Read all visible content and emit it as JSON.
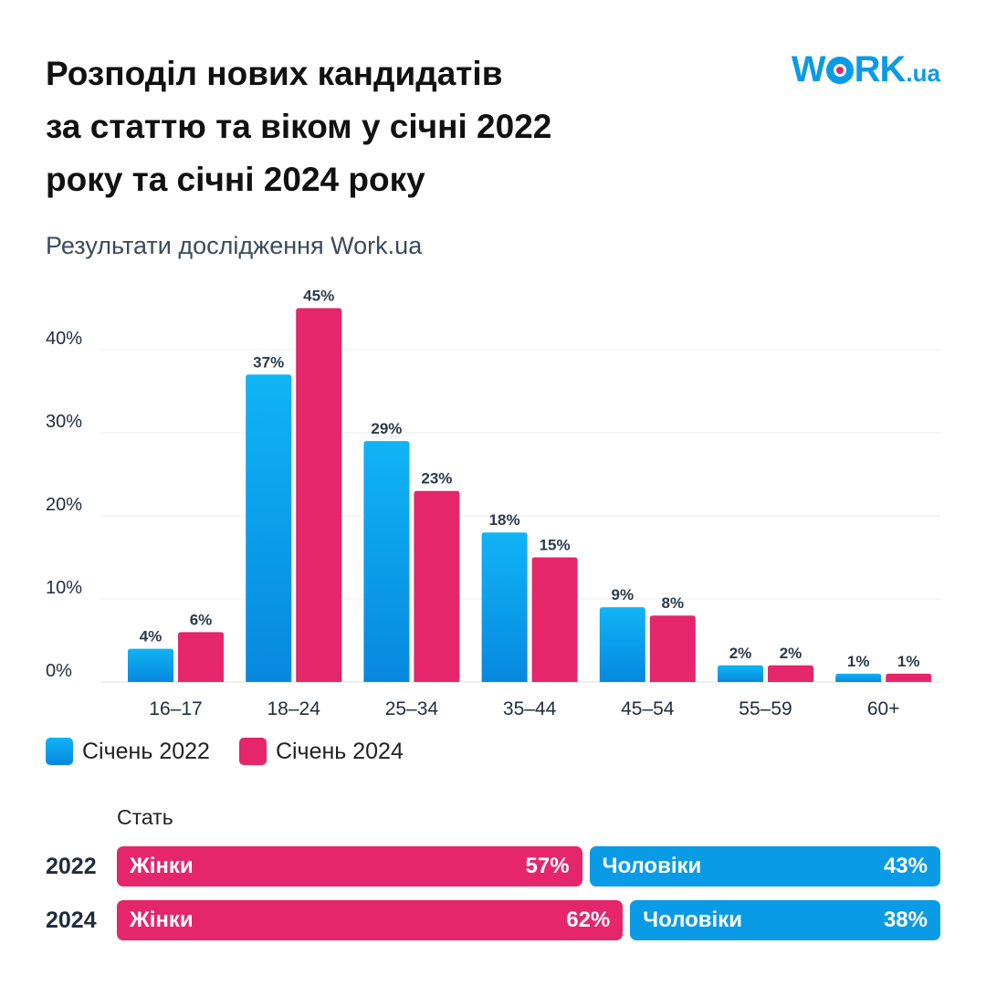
{
  "header": {
    "title_lines": [
      "Розподіл нових кандидатів",
      "за статтю та віком у січні 2022",
      "року та січні 2024 року"
    ],
    "subtitle": "Результати дослідження Work.ua"
  },
  "logo": {
    "prefix": "W",
    "middle": "RK",
    "suffix": ".ua"
  },
  "colors": {
    "series_2022": "#0a9be6",
    "series_2024": "#e5266b",
    "grid": "#e8ecf0",
    "text_dark": "#1f2d3d"
  },
  "chart_data": {
    "type": "bar",
    "title": "Розподіл нових кандидатів за статтю та віком у січні 2022 року та січні 2024 року",
    "xlabel": "",
    "ylabel": "",
    "categories": [
      "16–17",
      "18–24",
      "25–34",
      "35–44",
      "45–54",
      "55–59",
      "60+"
    ],
    "series": [
      {
        "name": "Січень 2022",
        "values": [
          4,
          37,
          29,
          18,
          9,
          2,
          1
        ],
        "labels": [
          "4%",
          "37%",
          "29%",
          "18%",
          "9%",
          "2%",
          "1%"
        ]
      },
      {
        "name": "Січень 2024",
        "values": [
          6,
          45,
          23,
          15,
          8,
          2,
          1
        ],
        "labels": [
          "6%",
          "45%",
          "23%",
          "15%",
          "8%",
          "2%",
          "1%"
        ]
      }
    ],
    "ylim": [
      0,
      40
    ],
    "yticks": [
      0,
      10,
      20,
      30,
      40
    ],
    "ytick_labels": [
      "0%",
      "10%",
      "20%",
      "30%",
      "40%"
    ],
    "grid": true,
    "legend": "bottom-left"
  },
  "legend": {
    "items": [
      "Січень 2022",
      "Січень 2024"
    ]
  },
  "gender": {
    "title": "Стать",
    "rows": [
      {
        "year": "2022",
        "women_label": "Жінки",
        "women_value": "57%",
        "women_share": 57,
        "men_label": "Чоловіки",
        "men_value": "43%",
        "men_share": 43
      },
      {
        "year": "2024",
        "women_label": "Жінки",
        "women_value": "62%",
        "women_share": 62,
        "men_label": "Чоловіки",
        "men_value": "38%",
        "men_share": 38
      }
    ]
  }
}
